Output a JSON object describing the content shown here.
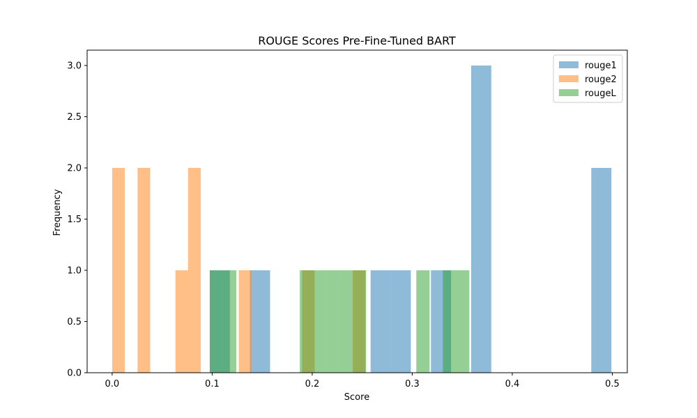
{
  "chart_data": {
    "type": "histogram",
    "title": "ROUGE Scores Pre-Fine-Tuned BART",
    "xlabel": "Score",
    "ylabel": "Frequency",
    "xlim": [
      -0.025,
      0.515
    ],
    "ylim": [
      0,
      3.15
    ],
    "x_ticks": [
      0.0,
      0.1,
      0.2,
      0.3,
      0.4,
      0.5
    ],
    "x_tick_labels": [
      "0.0",
      "0.1",
      "0.2",
      "0.3",
      "0.4",
      "0.5"
    ],
    "y_ticks": [
      0.0,
      0.5,
      1.0,
      1.5,
      2.0,
      2.5,
      3.0
    ],
    "y_tick_labels": [
      "0.0",
      "0.5",
      "1.0",
      "1.5",
      "2.0",
      "2.5",
      "3.0"
    ],
    "grid": false,
    "legend_position": "top-right",
    "series": [
      {
        "name": "rouge1",
        "color": "#1f77b4",
        "opacity": 0.5,
        "bins": [
          {
            "x0": 0.0976,
            "x1": 0.1177,
            "count": 1
          },
          {
            "x0": 0.1378,
            "x1": 0.1579,
            "count": 1
          },
          {
            "x0": 0.2584,
            "x1": 0.2785,
            "count": 1
          },
          {
            "x0": 0.2785,
            "x1": 0.2986,
            "count": 1
          },
          {
            "x0": 0.3187,
            "x1": 0.3388,
            "count": 1
          },
          {
            "x0": 0.3589,
            "x1": 0.379,
            "count": 3
          },
          {
            "x0": 0.479,
            "x1": 0.4991,
            "count": 2
          }
        ]
      },
      {
        "name": "rouge2",
        "color": "#ff7f0e",
        "opacity": 0.5,
        "bins": [
          {
            "x0": 0.0,
            "x1": 0.0126,
            "count": 2
          },
          {
            "x0": 0.0254,
            "x1": 0.038,
            "count": 2
          },
          {
            "x0": 0.0633,
            "x1": 0.0759,
            "count": 1
          },
          {
            "x0": 0.0759,
            "x1": 0.0886,
            "count": 2
          },
          {
            "x0": 0.1266,
            "x1": 0.1392,
            "count": 1
          },
          {
            "x0": 0.1899,
            "x1": 0.2025,
            "count": 1
          },
          {
            "x0": 0.2405,
            "x1": 0.2532,
            "count": 1
          }
        ]
      },
      {
        "name": "rougeL",
        "color": "#2ca02c",
        "opacity": 0.5,
        "bins": [
          {
            "x0": 0.0976,
            "x1": 0.1108,
            "count": 1
          },
          {
            "x0": 0.1108,
            "x1": 0.1241,
            "count": 1
          },
          {
            "x0": 0.1876,
            "x1": 0.2008,
            "count": 1
          },
          {
            "x0": 0.2008,
            "x1": 0.2141,
            "count": 1
          },
          {
            "x0": 0.2141,
            "x1": 0.2274,
            "count": 1
          },
          {
            "x0": 0.2274,
            "x1": 0.2406,
            "count": 1
          },
          {
            "x0": 0.2406,
            "x1": 0.2539,
            "count": 1
          },
          {
            "x0": 0.3041,
            "x1": 0.3174,
            "count": 1
          },
          {
            "x0": 0.3306,
            "x1": 0.3439,
            "count": 1
          },
          {
            "x0": 0.3439,
            "x1": 0.3571,
            "count": 1
          }
        ]
      }
    ]
  }
}
